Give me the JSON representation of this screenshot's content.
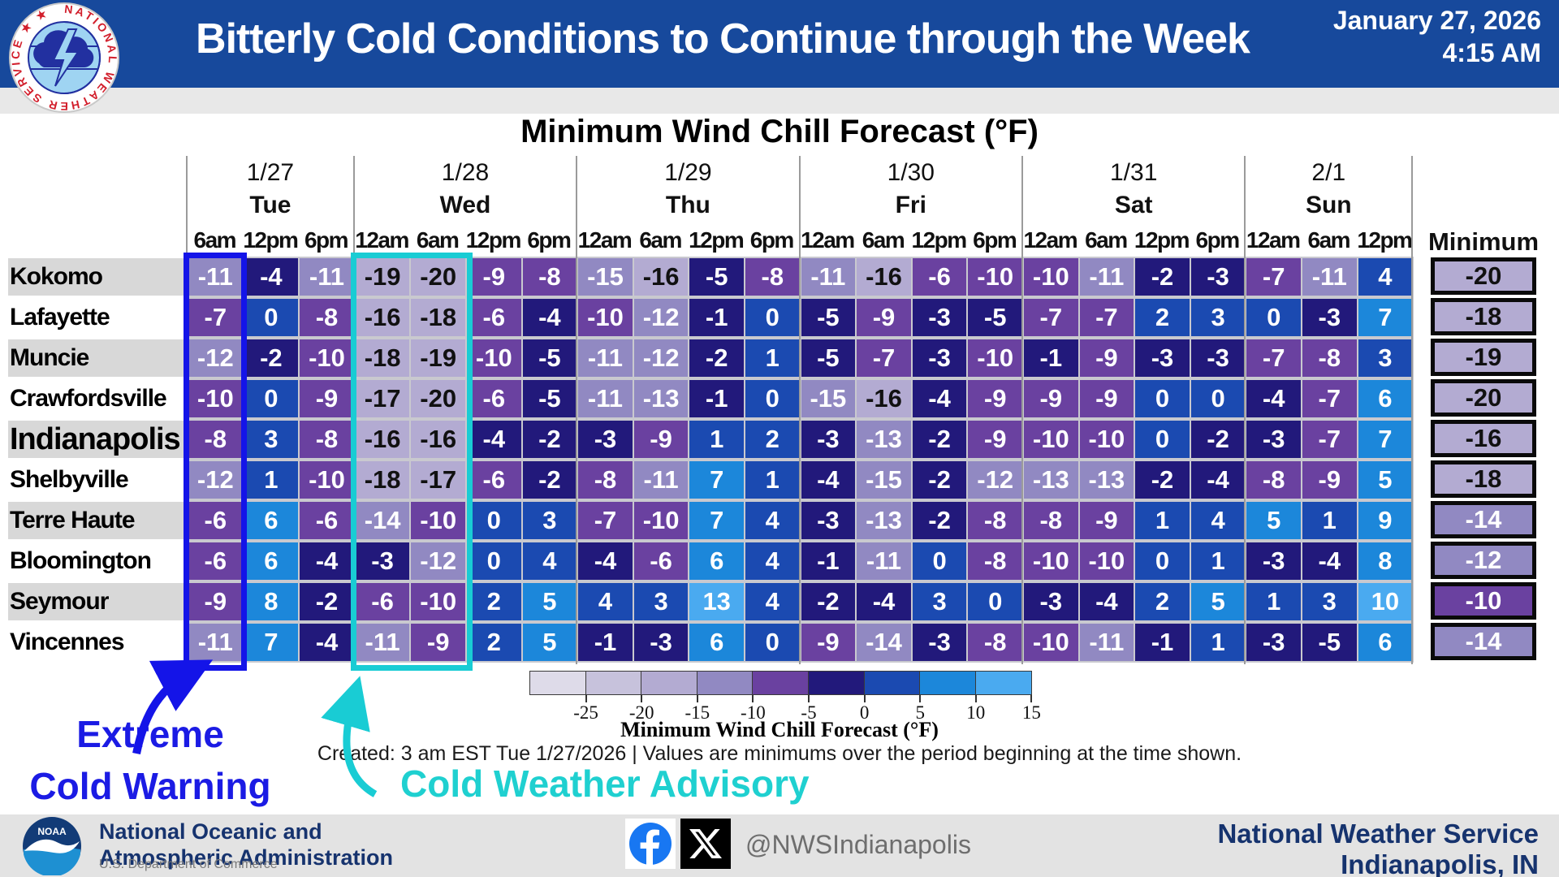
{
  "header": {
    "title": "Bitterly Cold Conditions to Continue through the Week",
    "date": "January 27, 2026",
    "time": "4:15 AM"
  },
  "chart_data": {
    "type": "heatmap",
    "title": "Minimum Wind Chill Forecast (°F)",
    "unit": "°F",
    "day_groups": [
      {
        "date": "1/27",
        "day": "Tue",
        "times": [
          "6am",
          "12pm",
          "6pm"
        ]
      },
      {
        "date": "1/28",
        "day": "Wed",
        "times": [
          "12am",
          "6am",
          "12pm",
          "6pm"
        ]
      },
      {
        "date": "1/29",
        "day": "Thu",
        "times": [
          "12am",
          "6am",
          "12pm",
          "6pm"
        ]
      },
      {
        "date": "1/30",
        "day": "Fri",
        "times": [
          "12am",
          "6am",
          "12pm",
          "6pm"
        ]
      },
      {
        "date": "1/31",
        "day": "Sat",
        "times": [
          "12am",
          "6am",
          "12pm",
          "6pm"
        ]
      },
      {
        "date": "2/1",
        "day": "Sun",
        "times": [
          "12am",
          "6am",
          "12pm"
        ]
      }
    ],
    "minimum_label": "Minimum",
    "rows": [
      {
        "city": "Kokomo",
        "values": [
          -11,
          -4,
          -11,
          -19,
          -20,
          -9,
          -8,
          -15,
          -16,
          -5,
          -8,
          -11,
          -16,
          -6,
          -10,
          -10,
          -11,
          -2,
          -3,
          -7,
          -11,
          4
        ],
        "minimum": -20
      },
      {
        "city": "Lafayette",
        "values": [
          -7,
          0,
          -8,
          -16,
          -18,
          -6,
          -4,
          -10,
          -12,
          -1,
          0,
          -5,
          -9,
          -3,
          -5,
          -7,
          -7,
          2,
          3,
          0,
          -3,
          7
        ],
        "minimum": -18
      },
      {
        "city": "Muncie",
        "values": [
          -12,
          -2,
          -10,
          -18,
          -19,
          -10,
          -5,
          -11,
          -12,
          -2,
          1,
          -5,
          -7,
          -3,
          -10,
          -1,
          -9,
          -3,
          -3,
          -7,
          -8,
          3
        ],
        "minimum": -19
      },
      {
        "city": "Crawfordsville",
        "values": [
          -10,
          0,
          -9,
          -17,
          -20,
          -6,
          -5,
          -11,
          -13,
          -1,
          0,
          -15,
          -16,
          -4,
          -9,
          -9,
          -9,
          0,
          0,
          -4,
          -7,
          6
        ],
        "minimum": -20
      },
      {
        "city": "Indianapolis",
        "emphasis": true,
        "values": [
          -8,
          3,
          -8,
          -16,
          -16,
          -4,
          -2,
          -3,
          -9,
          1,
          2,
          -3,
          -13,
          -2,
          -9,
          -10,
          -10,
          0,
          -2,
          -3,
          -7,
          7
        ],
        "minimum": -16
      },
      {
        "city": "Shelbyville",
        "values": [
          -12,
          1,
          -10,
          -18,
          -17,
          -6,
          -2,
          -8,
          -11,
          7,
          1,
          -4,
          -15,
          -2,
          -12,
          -13,
          -13,
          -2,
          -4,
          -8,
          -9,
          5
        ],
        "minimum": -18
      },
      {
        "city": "Terre Haute",
        "values": [
          -6,
          6,
          -6,
          -14,
          -10,
          0,
          3,
          -7,
          -10,
          7,
          4,
          -3,
          -13,
          -2,
          -8,
          -8,
          -9,
          1,
          4,
          5,
          1,
          9
        ],
        "minimum": -14
      },
      {
        "city": "Bloomington",
        "values": [
          -6,
          6,
          -4,
          -3,
          -12,
          0,
          4,
          -4,
          -6,
          6,
          4,
          -1,
          -11,
          0,
          -8,
          -10,
          -10,
          0,
          1,
          -3,
          -4,
          8
        ],
        "minimum": -12
      },
      {
        "city": "Seymour",
        "values": [
          -9,
          8,
          -2,
          -6,
          -10,
          2,
          5,
          4,
          3,
          13,
          4,
          -2,
          -4,
          3,
          0,
          -3,
          -4,
          2,
          5,
          1,
          3,
          10
        ],
        "minimum": -10
      },
      {
        "city": "Vincennes",
        "values": [
          -11,
          7,
          -4,
          -11,
          -9,
          2,
          5,
          -1,
          -3,
          6,
          0,
          -9,
          -14,
          -3,
          -8,
          -10,
          -11,
          -1,
          1,
          -3,
          -5,
          6
        ],
        "minimum": -14
      }
    ],
    "legend": {
      "title": "Minimum Wind Chill Forecast (°F)",
      "ticks": [
        -25,
        -20,
        -15,
        -10,
        -5,
        0,
        5,
        10,
        15
      ],
      "colors": [
        "#dedbe9",
        "#c7c2dc",
        "#b3abd2",
        "#9189c2",
        "#6a41a0",
        "#22197b",
        "#1b4ab1",
        "#1c87da",
        "#4aaaf0"
      ],
      "position": "bottom-center"
    }
  },
  "annotations": {
    "extreme_line1": "Extreme",
    "extreme_line2": "Cold Warning",
    "advisory": "Cold Weather Advisory",
    "created": "Created: 3 am EST Tue 1/27/2026  |  Values are minimums over the period beginning at the time shown."
  },
  "colors": {
    "header_bg": "#17499c",
    "warning_box": "#1414e8",
    "advisory_box": "#19ccd4",
    "warning_text": "#1b1be4",
    "advisory_text": "#1fd0d0",
    "row_stripe": "#d8d8d8",
    "footer_navy": "#16336e",
    "facebook_blue": "#1877f2"
  },
  "footer": {
    "noaa_badge": "NOAA",
    "noaa_line1": "National Oceanic and",
    "noaa_line2": "Atmospheric Administration",
    "noaa_dept": "U.S. Department of Commerce",
    "social_handle": "@NWSIndianapolis",
    "org_line1": "National Weather Service",
    "org_line2": "Indianapolis, IN"
  }
}
